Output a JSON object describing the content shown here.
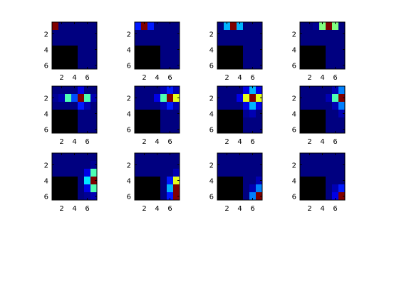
{
  "chart_data": {
    "type": "heatmap",
    "grid": false,
    "colormap": "jet",
    "masked_color": "#000000",
    "xlim": [
      0.5,
      7.5
    ],
    "ylim": [
      0.5,
      6.5
    ],
    "x_ticks": [
      2,
      4,
      6
    ],
    "y_ticks": [
      2,
      4,
      6
    ],
    "layout_rows": 3,
    "layout_cols": 4,
    "panels": [
      {
        "values": [
          [
            1.0,
            0,
            0,
            0,
            0,
            0,
            0
          ],
          [
            0,
            0,
            0,
            0,
            0,
            0,
            0
          ],
          [
            0,
            0,
            0,
            0,
            0,
            0,
            0
          ],
          [
            null,
            null,
            null,
            null,
            0,
            0,
            0
          ],
          [
            null,
            null,
            null,
            null,
            0,
            0,
            0
          ],
          [
            null,
            null,
            null,
            null,
            0,
            0,
            0
          ]
        ]
      },
      {
        "values": [
          [
            0.15,
            1.0,
            0.15,
            0,
            0,
            0,
            0
          ],
          [
            0,
            0,
            0,
            0,
            0,
            0,
            0
          ],
          [
            0,
            0,
            0,
            0,
            0,
            0,
            0
          ],
          [
            null,
            null,
            null,
            null,
            0,
            0,
            0
          ],
          [
            null,
            null,
            null,
            null,
            0,
            0,
            0
          ],
          [
            null,
            null,
            null,
            null,
            0,
            0,
            0
          ]
        ]
      },
      {
        "values": [
          [
            0,
            0.3,
            1.0,
            0.3,
            0,
            0,
            0
          ],
          [
            0,
            0,
            0,
            0,
            0,
            0,
            0
          ],
          [
            0,
            0,
            0,
            0,
            0,
            0,
            0
          ],
          [
            null,
            null,
            null,
            null,
            0,
            0,
            0
          ],
          [
            null,
            null,
            null,
            null,
            0,
            0,
            0
          ],
          [
            null,
            null,
            null,
            null,
            0,
            0,
            0
          ]
        ]
      },
      {
        "values": [
          [
            0,
            0,
            0.02,
            0.5,
            1.0,
            0.5,
            0
          ],
          [
            0,
            0,
            0,
            0,
            0,
            0,
            0
          ],
          [
            0,
            0,
            0,
            0,
            0,
            0,
            0
          ],
          [
            null,
            null,
            null,
            null,
            0,
            0,
            0
          ],
          [
            null,
            null,
            null,
            null,
            0,
            0,
            0
          ],
          [
            null,
            null,
            null,
            null,
            0,
            0,
            0
          ]
        ]
      },
      {
        "values": [
          [
            0,
            0,
            0,
            0,
            0.1,
            0,
            0
          ],
          [
            0.02,
            0.05,
            0.45,
            0.2,
            1.0,
            0.45,
            0.05
          ],
          [
            0,
            0,
            0,
            0,
            0.15,
            0.05,
            0
          ],
          [
            null,
            null,
            null,
            null,
            0,
            0,
            0
          ],
          [
            null,
            null,
            null,
            null,
            0,
            0,
            0
          ],
          [
            null,
            null,
            null,
            null,
            0,
            0,
            0
          ]
        ]
      },
      {
        "values": [
          [
            0,
            0,
            0,
            0,
            0.05,
            0.15,
            0.05
          ],
          [
            0,
            0,
            0,
            0.1,
            0.45,
            1.0,
            0.6
          ],
          [
            0,
            0,
            0,
            0,
            0.05,
            0.15,
            0.05
          ],
          [
            null,
            null,
            null,
            null,
            0,
            0,
            0
          ],
          [
            null,
            null,
            null,
            null,
            0,
            0,
            0
          ],
          [
            null,
            null,
            null,
            null,
            0,
            0,
            0
          ]
        ]
      },
      {
        "values": [
          [
            0,
            0,
            0,
            0,
            0.1,
            0.3,
            0.1
          ],
          [
            0,
            0,
            0,
            0.1,
            0.6,
            1.0,
            0.6
          ],
          [
            0,
            0,
            0,
            0,
            0.1,
            0.3,
            0.1
          ],
          [
            null,
            null,
            null,
            null,
            0.02,
            0.05,
            0
          ],
          [
            null,
            null,
            null,
            null,
            0,
            0,
            0
          ],
          [
            null,
            null,
            null,
            null,
            0,
            0,
            0
          ]
        ]
      },
      {
        "values": [
          [
            0,
            0,
            0,
            0,
            0,
            0.05,
            0.25
          ],
          [
            0,
            0,
            0,
            0,
            0.05,
            0.45,
            1.0
          ],
          [
            0,
            0,
            0,
            0,
            0,
            0.05,
            0.25
          ],
          [
            null,
            null,
            null,
            null,
            0,
            0,
            0.05
          ],
          [
            null,
            null,
            null,
            null,
            0,
            0,
            0
          ],
          [
            null,
            null,
            null,
            null,
            0,
            0,
            0
          ]
        ]
      },
      {
        "values": [
          [
            0,
            0,
            0,
            0,
            0,
            0,
            0
          ],
          [
            0,
            0,
            0,
            0,
            0,
            0,
            0.02
          ],
          [
            0,
            0,
            0,
            0,
            0,
            0.1,
            0.45
          ],
          [
            null,
            null,
            null,
            null,
            0,
            0.35,
            1.0
          ],
          [
            null,
            null,
            null,
            null,
            0,
            0.1,
            0.45
          ],
          [
            null,
            null,
            null,
            null,
            0,
            0.02,
            0.05
          ]
        ]
      },
      {
        "values": [
          [
            0,
            0,
            0,
            0,
            0,
            0,
            0
          ],
          [
            0,
            0,
            0,
            0,
            0,
            0,
            0
          ],
          [
            0,
            0,
            0,
            0,
            0,
            0,
            0.05
          ],
          [
            null,
            null,
            null,
            null,
            0,
            0.15,
            0.6
          ],
          [
            null,
            null,
            null,
            null,
            0,
            0.3,
            1.0
          ],
          [
            null,
            null,
            null,
            null,
            0,
            0.15,
            1.0
          ]
        ]
      },
      {
        "values": [
          [
            0,
            0,
            0,
            0,
            0,
            0,
            0
          ],
          [
            0,
            0,
            0,
            0,
            0,
            0,
            0
          ],
          [
            0,
            0,
            0,
            0,
            0,
            0,
            0
          ],
          [
            null,
            null,
            null,
            null,
            0,
            0,
            0.05
          ],
          [
            null,
            null,
            null,
            null,
            0,
            0.05,
            0.25
          ],
          [
            null,
            null,
            null,
            null,
            0,
            0.25,
            1.0
          ]
        ]
      },
      {
        "values": [
          [
            0,
            0,
            0,
            0,
            0,
            0,
            0
          ],
          [
            0,
            0,
            0,
            0,
            0,
            0,
            0
          ],
          [
            0,
            0,
            0,
            0,
            0,
            0,
            0
          ],
          [
            null,
            null,
            null,
            null,
            0,
            0,
            0
          ],
          [
            null,
            null,
            null,
            null,
            0,
            0.05,
            0.15
          ],
          [
            null,
            null,
            null,
            null,
            0,
            0.1,
            1.0
          ]
        ]
      }
    ]
  }
}
